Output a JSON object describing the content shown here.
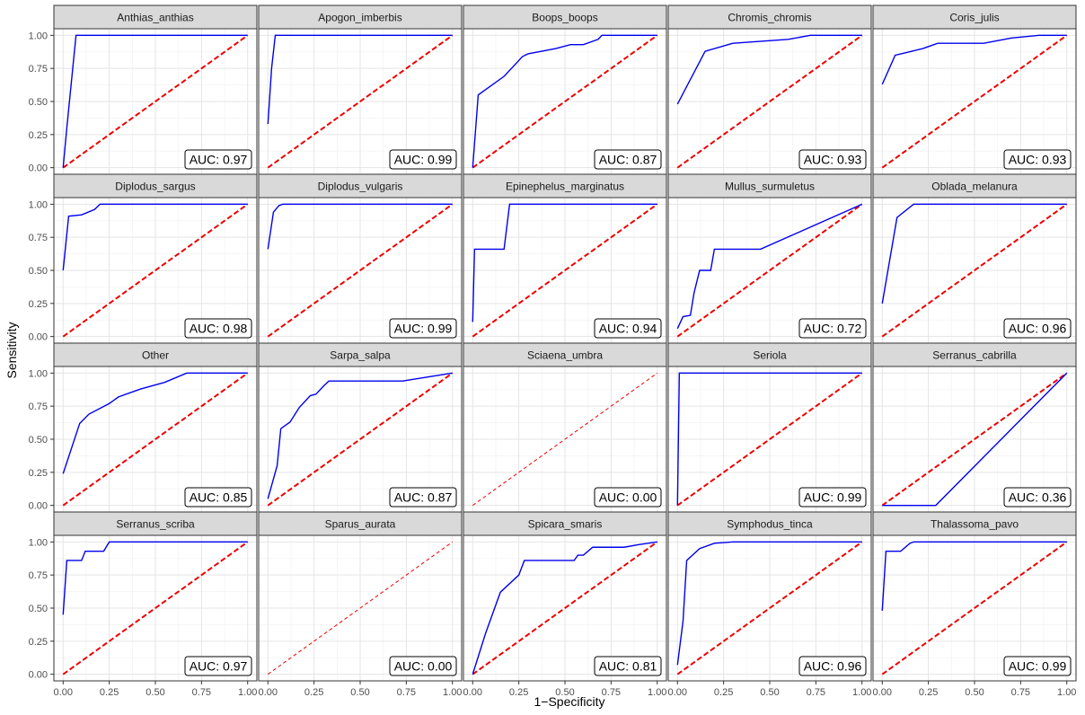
{
  "chart_data": {
    "type": "line",
    "layout": "faceted 4x5 grid",
    "xlabel": "1−Specificity",
    "ylabel": "Sensitivity",
    "xlim": [
      0,
      1
    ],
    "ylim": [
      0,
      1
    ],
    "x_ticks": [
      "0.00",
      "0.25",
      "0.50",
      "0.75",
      "1.00"
    ],
    "y_ticks": [
      "0.00",
      "0.25",
      "0.50",
      "0.75",
      "1.00"
    ],
    "grid": true,
    "roc_color": "#0000ee",
    "diagonal_color": "#ee0000",
    "strip_fill": "#d9d9d9",
    "auc_prefix": "AUC: ",
    "panels": [
      {
        "title": "Anthias_anthias",
        "auc": "0.97",
        "points": [
          [
            0,
            0
          ],
          [
            0.02,
            0.3
          ],
          [
            0.07,
            1
          ],
          [
            1,
            1
          ]
        ]
      },
      {
        "title": "Apogon_imberbis",
        "auc": "0.99",
        "points": [
          [
            0,
            0.33
          ],
          [
            0.02,
            0.75
          ],
          [
            0.04,
            1
          ],
          [
            1,
            1
          ]
        ]
      },
      {
        "title": "Boops_boops",
        "auc": "0.87",
        "points": [
          [
            0,
            0
          ],
          [
            0.03,
            0.55
          ],
          [
            0.17,
            0.69
          ],
          [
            0.27,
            0.84
          ],
          [
            0.3,
            0.86
          ],
          [
            0.45,
            0.9
          ],
          [
            0.53,
            0.93
          ],
          [
            0.6,
            0.93
          ],
          [
            0.68,
            0.97
          ],
          [
            0.7,
            1
          ],
          [
            1,
            1
          ]
        ]
      },
      {
        "title": "Chromis_chromis",
        "auc": "0.93",
        "points": [
          [
            0,
            0.48
          ],
          [
            0.15,
            0.88
          ],
          [
            0.3,
            0.94
          ],
          [
            0.6,
            0.97
          ],
          [
            0.72,
            1
          ],
          [
            1,
            1
          ]
        ]
      },
      {
        "title": "Coris_julis",
        "auc": "0.93",
        "points": [
          [
            0,
            0.63
          ],
          [
            0.07,
            0.85
          ],
          [
            0.13,
            0.87
          ],
          [
            0.22,
            0.9
          ],
          [
            0.3,
            0.94
          ],
          [
            0.55,
            0.94
          ],
          [
            0.7,
            0.98
          ],
          [
            0.85,
            1
          ],
          [
            1,
            1
          ]
        ]
      },
      {
        "title": "Diplodus_sargus",
        "auc": "0.98",
        "points": [
          [
            0,
            0.5
          ],
          [
            0.03,
            0.91
          ],
          [
            0.1,
            0.92
          ],
          [
            0.17,
            0.96
          ],
          [
            0.2,
            1
          ],
          [
            1,
            1
          ]
        ]
      },
      {
        "title": "Diplodus_vulgaris",
        "auc": "0.99",
        "points": [
          [
            0,
            0.66
          ],
          [
            0.03,
            0.94
          ],
          [
            0.06,
            0.99
          ],
          [
            0.08,
            1
          ],
          [
            1,
            1
          ]
        ]
      },
      {
        "title": "Epinephelus_marginatus",
        "auc": "0.94",
        "points": [
          [
            0,
            0.11
          ],
          [
            0.01,
            0.66
          ],
          [
            0.17,
            0.66
          ],
          [
            0.2,
            1
          ],
          [
            1,
            1
          ]
        ]
      },
      {
        "title": "Mullus_surmuletus",
        "auc": "0.72",
        "points": [
          [
            0,
            0.06
          ],
          [
            0.03,
            0.15
          ],
          [
            0.07,
            0.16
          ],
          [
            0.09,
            0.33
          ],
          [
            0.12,
            0.5
          ],
          [
            0.18,
            0.5
          ],
          [
            0.2,
            0.66
          ],
          [
            0.45,
            0.66
          ],
          [
            1,
            1
          ]
        ]
      },
      {
        "title": "Oblada_melanura",
        "auc": "0.96",
        "points": [
          [
            0,
            0.25
          ],
          [
            0.08,
            0.9
          ],
          [
            0.17,
            1
          ],
          [
            1,
            1
          ]
        ]
      },
      {
        "title": "Other",
        "auc": "0.85",
        "points": [
          [
            0,
            0.24
          ],
          [
            0.09,
            0.62
          ],
          [
            0.14,
            0.69
          ],
          [
            0.25,
            0.77
          ],
          [
            0.3,
            0.82
          ],
          [
            0.42,
            0.88
          ],
          [
            0.55,
            0.93
          ],
          [
            0.67,
            1
          ],
          [
            1,
            1
          ]
        ]
      },
      {
        "title": "Sarpa_salpa",
        "auc": "0.87",
        "points": [
          [
            0,
            0.05
          ],
          [
            0.05,
            0.3
          ],
          [
            0.07,
            0.58
          ],
          [
            0.12,
            0.63
          ],
          [
            0.17,
            0.74
          ],
          [
            0.23,
            0.83
          ],
          [
            0.26,
            0.84
          ],
          [
            0.3,
            0.9
          ],
          [
            0.33,
            0.94
          ],
          [
            0.73,
            0.94
          ],
          [
            1,
            1
          ]
        ]
      },
      {
        "title": "Sciaena_umbra",
        "auc": "0.00",
        "points": []
      },
      {
        "title": "Seriola",
        "auc": "0.99",
        "points": [
          [
            0,
            0
          ],
          [
            0.01,
            1
          ],
          [
            1,
            1
          ]
        ]
      },
      {
        "title": "Serranus_cabrilla",
        "auc": "0.36",
        "points": [
          [
            0,
            0
          ],
          [
            0.29,
            0
          ],
          [
            1,
            1
          ]
        ]
      },
      {
        "title": "Serranus_scriba",
        "auc": "0.97",
        "points": [
          [
            0,
            0.45
          ],
          [
            0.02,
            0.86
          ],
          [
            0.1,
            0.86
          ],
          [
            0.12,
            0.93
          ],
          [
            0.22,
            0.93
          ],
          [
            0.25,
            1
          ],
          [
            1,
            1
          ]
        ]
      },
      {
        "title": "Sparus_aurata",
        "auc": "0.00",
        "points": []
      },
      {
        "title": "Spicara_smaris",
        "auc": "0.81",
        "points": [
          [
            0,
            0
          ],
          [
            0.07,
            0.31
          ],
          [
            0.15,
            0.62
          ],
          [
            0.25,
            0.75
          ],
          [
            0.28,
            0.86
          ],
          [
            0.55,
            0.86
          ],
          [
            0.57,
            0.9
          ],
          [
            0.6,
            0.9
          ],
          [
            0.65,
            0.96
          ],
          [
            0.82,
            0.96
          ],
          [
            0.9,
            0.98
          ],
          [
            1,
            1
          ]
        ]
      },
      {
        "title": "Symphodus_tinca",
        "auc": "0.96",
        "points": [
          [
            0,
            0.07
          ],
          [
            0.03,
            0.4
          ],
          [
            0.05,
            0.86
          ],
          [
            0.12,
            0.95
          ],
          [
            0.2,
            0.99
          ],
          [
            0.3,
            1
          ],
          [
            1,
            1
          ]
        ]
      },
      {
        "title": "Thalassoma_pavo",
        "auc": "0.99",
        "points": [
          [
            0,
            0.48
          ],
          [
            0.02,
            0.93
          ],
          [
            0.1,
            0.93
          ],
          [
            0.15,
            0.99
          ],
          [
            0.17,
            1
          ],
          [
            1,
            1
          ]
        ]
      }
    ]
  }
}
